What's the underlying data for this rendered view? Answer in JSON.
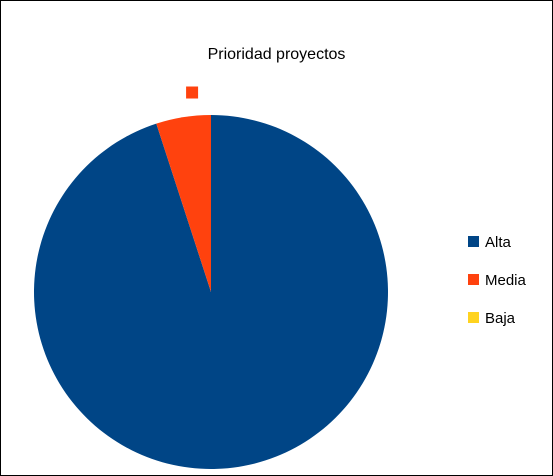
{
  "chart_data": {
    "type": "pie",
    "title": "Prioridad proyectos",
    "categories": [
      "Alta",
      "Media",
      "Baja"
    ],
    "values": [
      95,
      5,
      0
    ],
    "colors": [
      "#004586",
      "#ff420e",
      "#ffd320"
    ],
    "legend_position": "right",
    "start_angle": "top",
    "direction": "clockwise"
  }
}
